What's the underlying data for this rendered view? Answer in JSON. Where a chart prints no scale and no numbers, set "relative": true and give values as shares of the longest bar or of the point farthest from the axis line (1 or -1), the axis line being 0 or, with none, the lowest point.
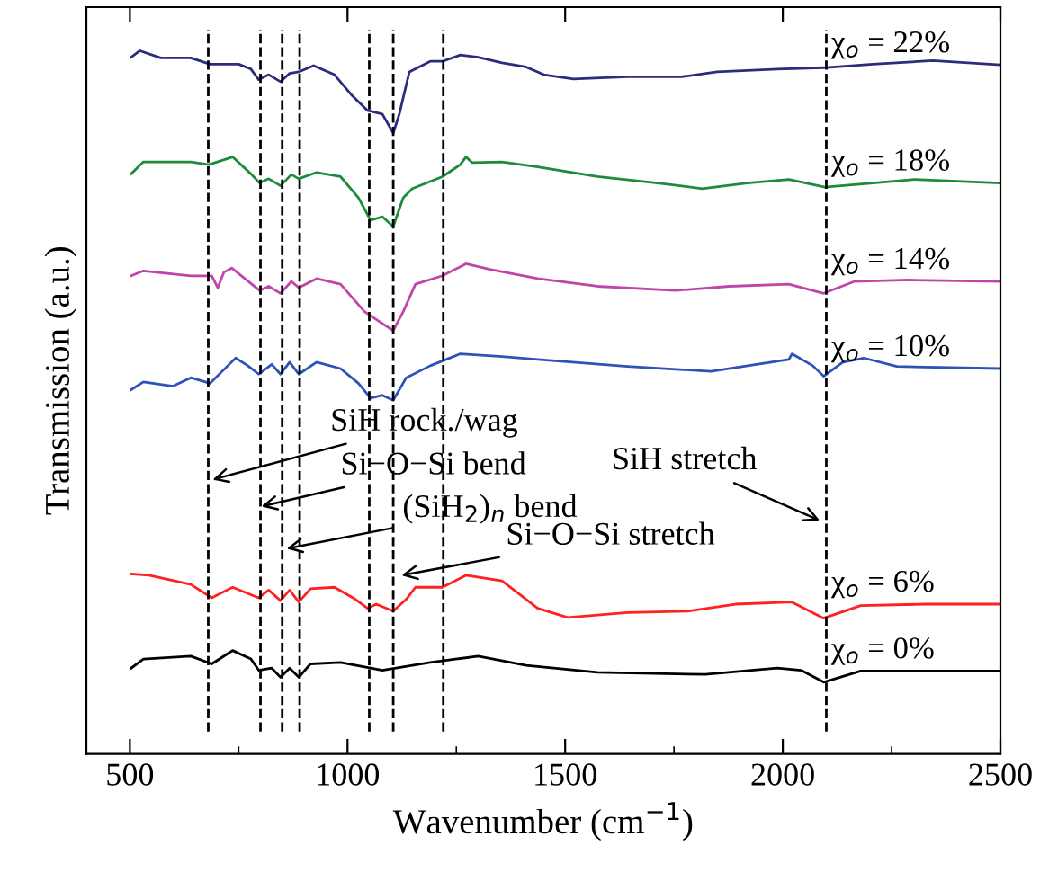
{
  "chart_data": {
    "type": "line",
    "relative": true,
    "xlabel": "Wavenumber (cm$^{−1}$)",
    "ylabel": "Transmission (a.u.)",
    "xlim": [
      400,
      2500
    ],
    "xticks": [
      500,
      1000,
      1500,
      2000,
      2500
    ],
    "grid": false,
    "line_style": "solid",
    "marker": "none",
    "series": [
      {
        "name": "χ$_{o}$ = 22%",
        "color": "#2b2d7c",
        "x": [
          503,
          523,
          571,
          640,
          684,
          750,
          778,
          796,
          819,
          846,
          867,
          888,
          922,
          970,
          1011,
          1046,
          1080,
          1105,
          1119,
          1142,
          1190,
          1218,
          1259,
          1300,
          1355,
          1410,
          1451,
          1519,
          1643,
          1767,
          1849,
          1987,
          2094,
          2207,
          2344,
          2500
        ],
        "values": [
          0.991,
          1.0,
          0.99,
          0.99,
          0.981,
          0.981,
          0.974,
          0.959,
          0.966,
          0.956,
          0.968,
          0.97,
          0.979,
          0.966,
          0.936,
          0.915,
          0.91,
          0.883,
          0.91,
          0.97,
          0.985,
          0.985,
          0.994,
          0.991,
          0.983,
          0.977,
          0.966,
          0.96,
          0.963,
          0.963,
          0.97,
          0.974,
          0.976,
          0.981,
          0.986,
          0.98
        ]
      },
      {
        "name": "χ$_{o}$ = 18%",
        "color": "#1d8a3c",
        "x": [
          503,
          531,
          640,
          681,
          736,
          778,
          798,
          819,
          846,
          871,
          888,
          929,
          984,
          1025,
          1053,
          1080,
          1105,
          1128,
          1149,
          1218,
          1259,
          1272,
          1286,
          1355,
          1437,
          1574,
          1712,
          1815,
          1918,
          2014,
          2097,
          2207,
          2303,
          2500
        ],
        "values": [
          0.825,
          0.842,
          0.842,
          0.838,
          0.849,
          0.825,
          0.812,
          0.818,
          0.808,
          0.824,
          0.818,
          0.827,
          0.821,
          0.791,
          0.759,
          0.764,
          0.75,
          0.791,
          0.804,
          0.821,
          0.838,
          0.849,
          0.841,
          0.842,
          0.835,
          0.821,
          0.812,
          0.804,
          0.812,
          0.817,
          0.806,
          0.812,
          0.817,
          0.812
        ]
      },
      {
        "name": "χ$_{o}$ = 14%",
        "color": "#c045a8",
        "x": [
          503,
          531,
          640,
          688,
          702,
          716,
          734,
          764,
          798,
          819,
          846,
          871,
          888,
          929,
          984,
          1039,
          1080,
          1105,
          1128,
          1156,
          1218,
          1272,
          1327,
          1437,
          1574,
          1753,
          1877,
          2014,
          2094,
          2165,
          2289,
          2500
        ],
        "values": [
          0.68,
          0.687,
          0.68,
          0.68,
          0.663,
          0.685,
          0.691,
          0.676,
          0.659,
          0.665,
          0.655,
          0.672,
          0.663,
          0.676,
          0.668,
          0.629,
          0.612,
          0.602,
          0.629,
          0.668,
          0.68,
          0.697,
          0.689,
          0.676,
          0.665,
          0.659,
          0.665,
          0.668,
          0.655,
          0.672,
          0.674,
          0.672
        ]
      },
      {
        "name": "χ$_{o}$ = 10%",
        "color": "#2d52b8",
        "x": [
          503,
          531,
          599,
          640,
          684,
          743,
          771,
          796,
          826,
          846,
          867,
          888,
          929,
          984,
          1025,
          1053,
          1080,
          1105,
          1135,
          1190,
          1259,
          1355,
          1437,
          1643,
          1835,
          2014,
          2021,
          2069,
          2094,
          2138,
          2186,
          2262,
          2500
        ],
        "values": [
          0.518,
          0.529,
          0.523,
          0.535,
          0.527,
          0.563,
          0.552,
          0.54,
          0.554,
          0.54,
          0.557,
          0.54,
          0.557,
          0.548,
          0.527,
          0.506,
          0.51,
          0.503,
          0.535,
          0.552,
          0.569,
          0.565,
          0.561,
          0.551,
          0.544,
          0.561,
          0.569,
          0.552,
          0.537,
          0.557,
          0.563,
          0.551,
          0.548
        ]
      },
      {
        "name": "χ$_{o}$ = 6%",
        "color": "#ff2020",
        "x": [
          503,
          544,
          640,
          688,
          736,
          796,
          819,
          846,
          867,
          888,
          915,
          970,
          1018,
          1046,
          1066,
          1105,
          1135,
          1156,
          1218,
          1272,
          1355,
          1437,
          1506,
          1643,
          1781,
          1891,
          2021,
          2094,
          2179,
          2330,
          2500
        ],
        "values": [
          0.256,
          0.254,
          0.241,
          0.222,
          0.237,
          0.222,
          0.233,
          0.218,
          0.233,
          0.216,
          0.235,
          0.237,
          0.22,
          0.207,
          0.213,
          0.203,
          0.22,
          0.237,
          0.237,
          0.254,
          0.246,
          0.207,
          0.194,
          0.201,
          0.203,
          0.213,
          0.216,
          0.193,
          0.211,
          0.213,
          0.213
        ]
      },
      {
        "name": "χ$_{o}$ = 0%",
        "color": "#000000",
        "x": [
          503,
          531,
          640,
          688,
          736,
          778,
          796,
          826,
          846,
          867,
          888,
          915,
          984,
          1053,
          1080,
          1190,
          1300,
          1410,
          1574,
          1822,
          1987,
          2042,
          2094,
          2179,
          2330,
          2500
        ],
        "values": [
          0.122,
          0.135,
          0.139,
          0.128,
          0.147,
          0.135,
          0.119,
          0.122,
          0.109,
          0.122,
          0.109,
          0.128,
          0.13,
          0.122,
          0.119,
          0.13,
          0.139,
          0.126,
          0.116,
          0.113,
          0.122,
          0.119,
          0.102,
          0.118,
          0.118,
          0.118
        ]
      }
    ],
    "ref_lines": [
      {
        "axis": "x",
        "value": 680,
        "color": "#000000",
        "line_style": "dashed"
      },
      {
        "axis": "x",
        "value": 800,
        "color": "#000000",
        "line_style": "dashed"
      },
      {
        "axis": "x",
        "value": 850,
        "color": "#000000",
        "line_style": "dashed"
      },
      {
        "axis": "x",
        "value": 890,
        "color": "#000000",
        "line_style": "dashed"
      },
      {
        "axis": "x",
        "value": 1050,
        "color": "#000000",
        "line_style": "dashed"
      },
      {
        "axis": "x",
        "value": 1105,
        "color": "#000000",
        "line_style": "dashed"
      },
      {
        "axis": "x",
        "value": 1220,
        "color": "#000000",
        "line_style": "dashed"
      },
      {
        "axis": "x",
        "value": 2100,
        "color": "#000000",
        "line_style": "dashed"
      }
    ],
    "annotations": [
      {
        "text": "SiH rock./wag",
        "x": 690,
        "y": 0.39
      },
      {
        "text": "Si−O−Si bend",
        "x": 802,
        "y": 0.352
      },
      {
        "text": "(SiH$_{2}$)$_{n}$ bend",
        "x": 860,
        "y": 0.292
      },
      {
        "text": "Si−O−Si stretch",
        "x": 1124,
        "y": 0.254
      },
      {
        "text": "SiH stretch",
        "x": 2085,
        "y": 0.332
      }
    ]
  }
}
